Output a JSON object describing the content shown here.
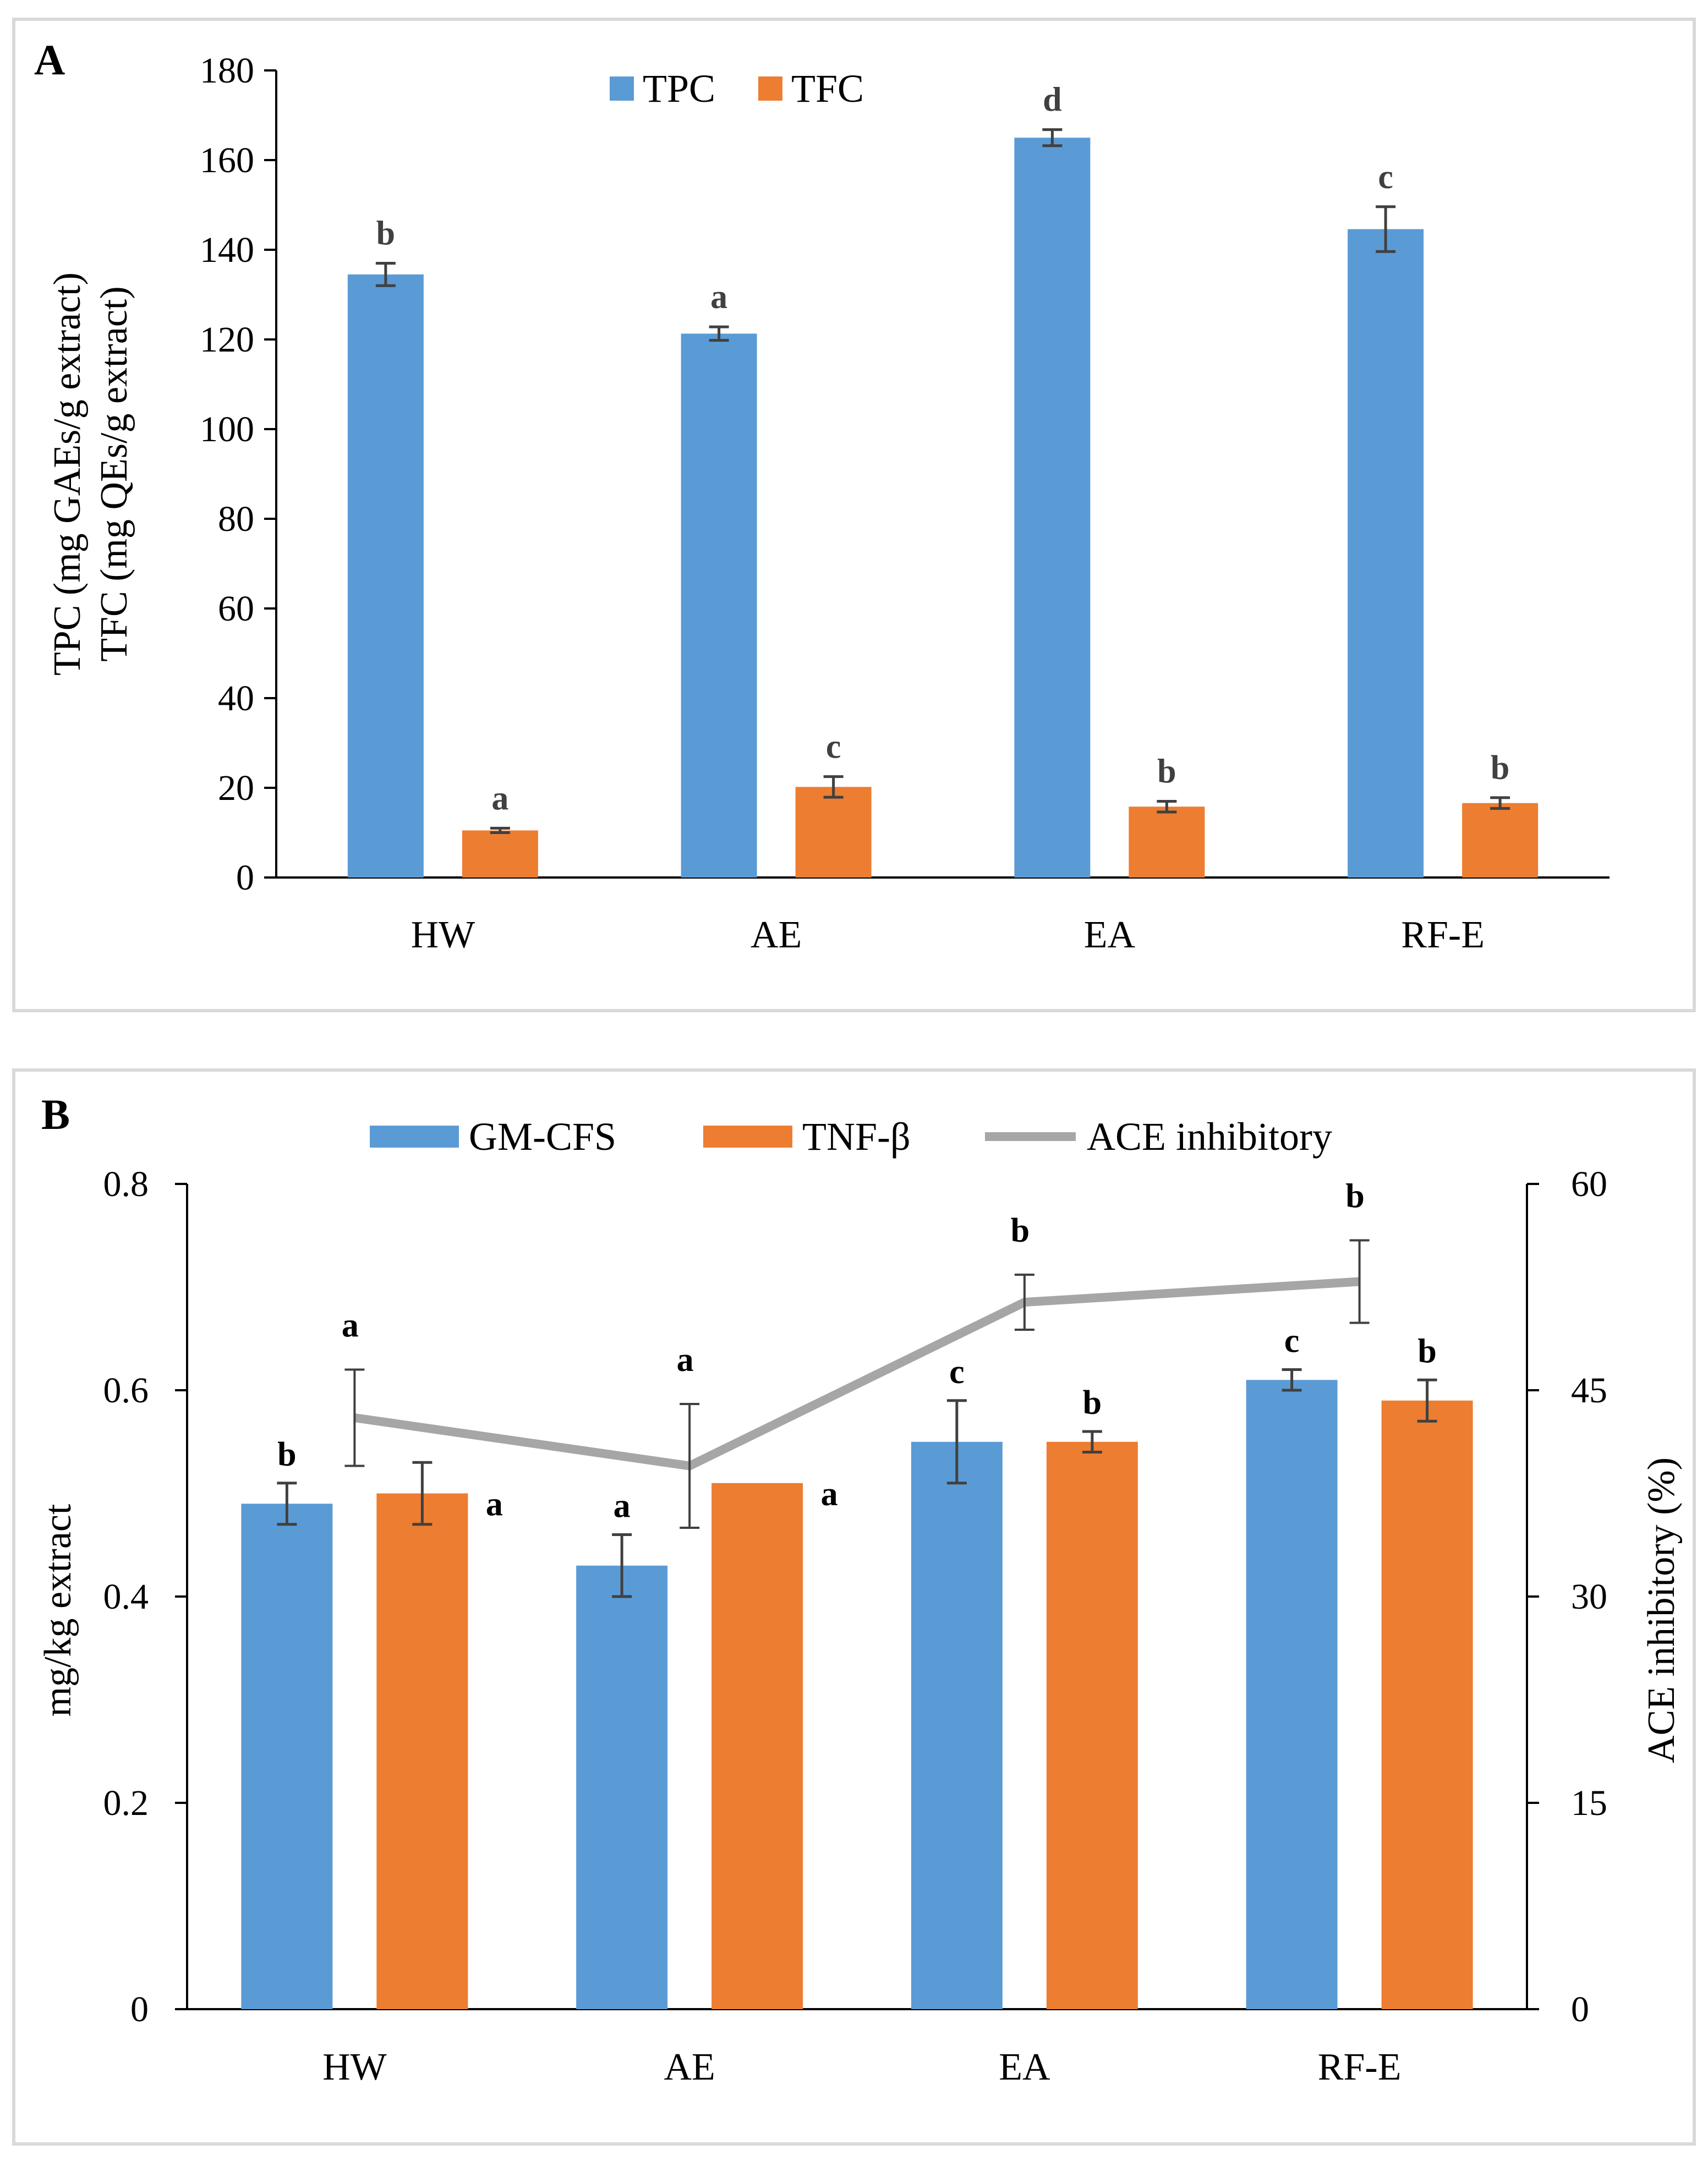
{
  "chart_data": [
    {
      "panel_label": "A",
      "type": "bar",
      "categories": [
        "HW",
        "AE",
        "EA",
        "RF-E"
      ],
      "series": [
        {
          "name": "TPC",
          "color": "#5b9bd5",
          "values": [
            134.5,
            121.3,
            165.0,
            144.6
          ],
          "errors": [
            2.5,
            1.5,
            1.8,
            5.0
          ],
          "letters": [
            "b",
            "a",
            "d",
            "c"
          ]
        },
        {
          "name": "TFC",
          "color": "#ed7d31",
          "values": [
            10.5,
            20.2,
            15.8,
            16.6
          ],
          "errors": [
            0.5,
            2.3,
            1.2,
            1.2
          ],
          "letters": [
            "a",
            "c",
            "b",
            "b"
          ]
        }
      ],
      "ylabel_line1": "TPC (mg GAEs/g extract)",
      "ylabel_line2": "TFC (mg QEs/g extract)",
      "ylim": [
        0,
        180
      ],
      "yticks": [
        "0",
        "20",
        "40",
        "60",
        "80",
        "100",
        "120",
        "140",
        "160",
        "180"
      ]
    },
    {
      "panel_label": "B",
      "type": "bar+line",
      "categories": [
        "HW",
        "AE",
        "EA",
        "RF-E"
      ],
      "series": [
        {
          "name": "GM-CFS",
          "color": "#5b9bd5",
          "values": [
            0.49,
            0.43,
            0.55,
            0.61
          ],
          "errors": [
            0.02,
            0.03,
            0.04,
            0.01
          ],
          "letters": [
            "b",
            "a",
            "c",
            "c"
          ]
        },
        {
          "name": "TNF-β",
          "color": "#ed7d31",
          "values": [
            0.5,
            0.51,
            0.55,
            0.59
          ],
          "errors": [
            0.03,
            0.0,
            0.01,
            0.02
          ],
          "letters": [
            "a",
            "a",
            "b",
            "b"
          ]
        }
      ],
      "line_series": {
        "name": "ACE inhibitory",
        "color": "#a6a6a6",
        "axis": "right",
        "values": [
          43.0,
          39.5,
          51.4,
          52.9
        ],
        "errors": [
          3.5,
          4.5,
          2.0,
          3.0
        ],
        "letters": [
          "a",
          "a",
          "b",
          "b"
        ]
      },
      "ylabel": "mg/kg extract",
      "ylim": [
        0,
        0.8
      ],
      "yticks": [
        "0",
        "0.2",
        "0.4",
        "0.6",
        "0.8"
      ],
      "y2label": "ACE inhibitory (%)",
      "y2lim": [
        0,
        60
      ],
      "y2ticks": [
        "0",
        "15",
        "30",
        "45",
        "60"
      ]
    }
  ]
}
